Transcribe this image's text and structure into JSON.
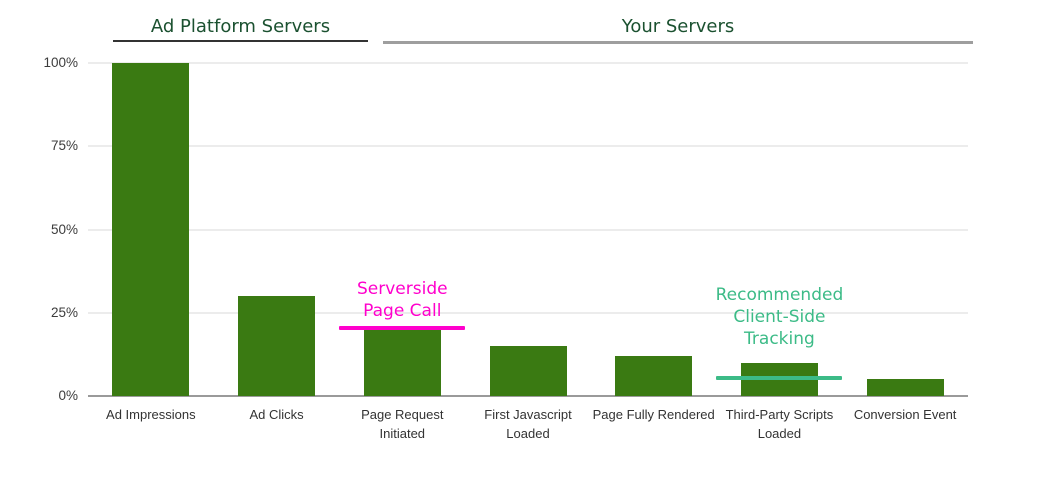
{
  "chart_data": {
    "type": "bar",
    "title": "",
    "categories": [
      "Ad Impressions",
      "Ad Clicks",
      "Page Request Initiated",
      "First Javascript Loaded",
      "Page Fully Rendered",
      "Third-Party Scripts Loaded",
      "Conversion Event"
    ],
    "values": [
      100,
      30,
      20,
      15,
      12,
      10,
      5
    ],
    "xlabel": "",
    "ylabel": "",
    "ylim": [
      0,
      100
    ],
    "yticks": [
      0,
      25,
      50,
      75,
      100
    ],
    "ytick_labels": [
      "0%",
      "25%",
      "50%",
      "75%",
      "100%"
    ],
    "grid": true,
    "legend": "none",
    "bar_color": "#3a7a12",
    "groups": [
      {
        "label": "Ad Platform Servers",
        "category_span": [
          0,
          1
        ]
      },
      {
        "label": "Your Servers",
        "category_span": [
          2,
          6
        ]
      }
    ],
    "annotations": [
      {
        "id": "serverside-page-call",
        "text_lines": [
          "Serverside",
          "Page Call"
        ],
        "color": "#ff00cc",
        "target_category": "Page Request Initiated",
        "line_value": 21,
        "text_gap": 4
      },
      {
        "id": "recommended-client-side-tracking",
        "text_lines": [
          "Recommended",
          "Client-Side",
          "Tracking"
        ],
        "color": "#3cbb87",
        "target_category": "Third-Party Scripts Loaded",
        "line_value": 6,
        "text_gap": 26
      }
    ]
  },
  "colors": {
    "bar_green": "#3a7a12",
    "title_green": "#1b5130",
    "annotation_magenta": "#ff00cc",
    "annotation_teal": "#3cbb87",
    "axis_text": "#3c3c3c",
    "category_text": "#333333",
    "gridline": "#ececec",
    "baseline": "#9a9a9a",
    "group1_underline": "#333333",
    "group2_underline": "#9e9e9e"
  }
}
